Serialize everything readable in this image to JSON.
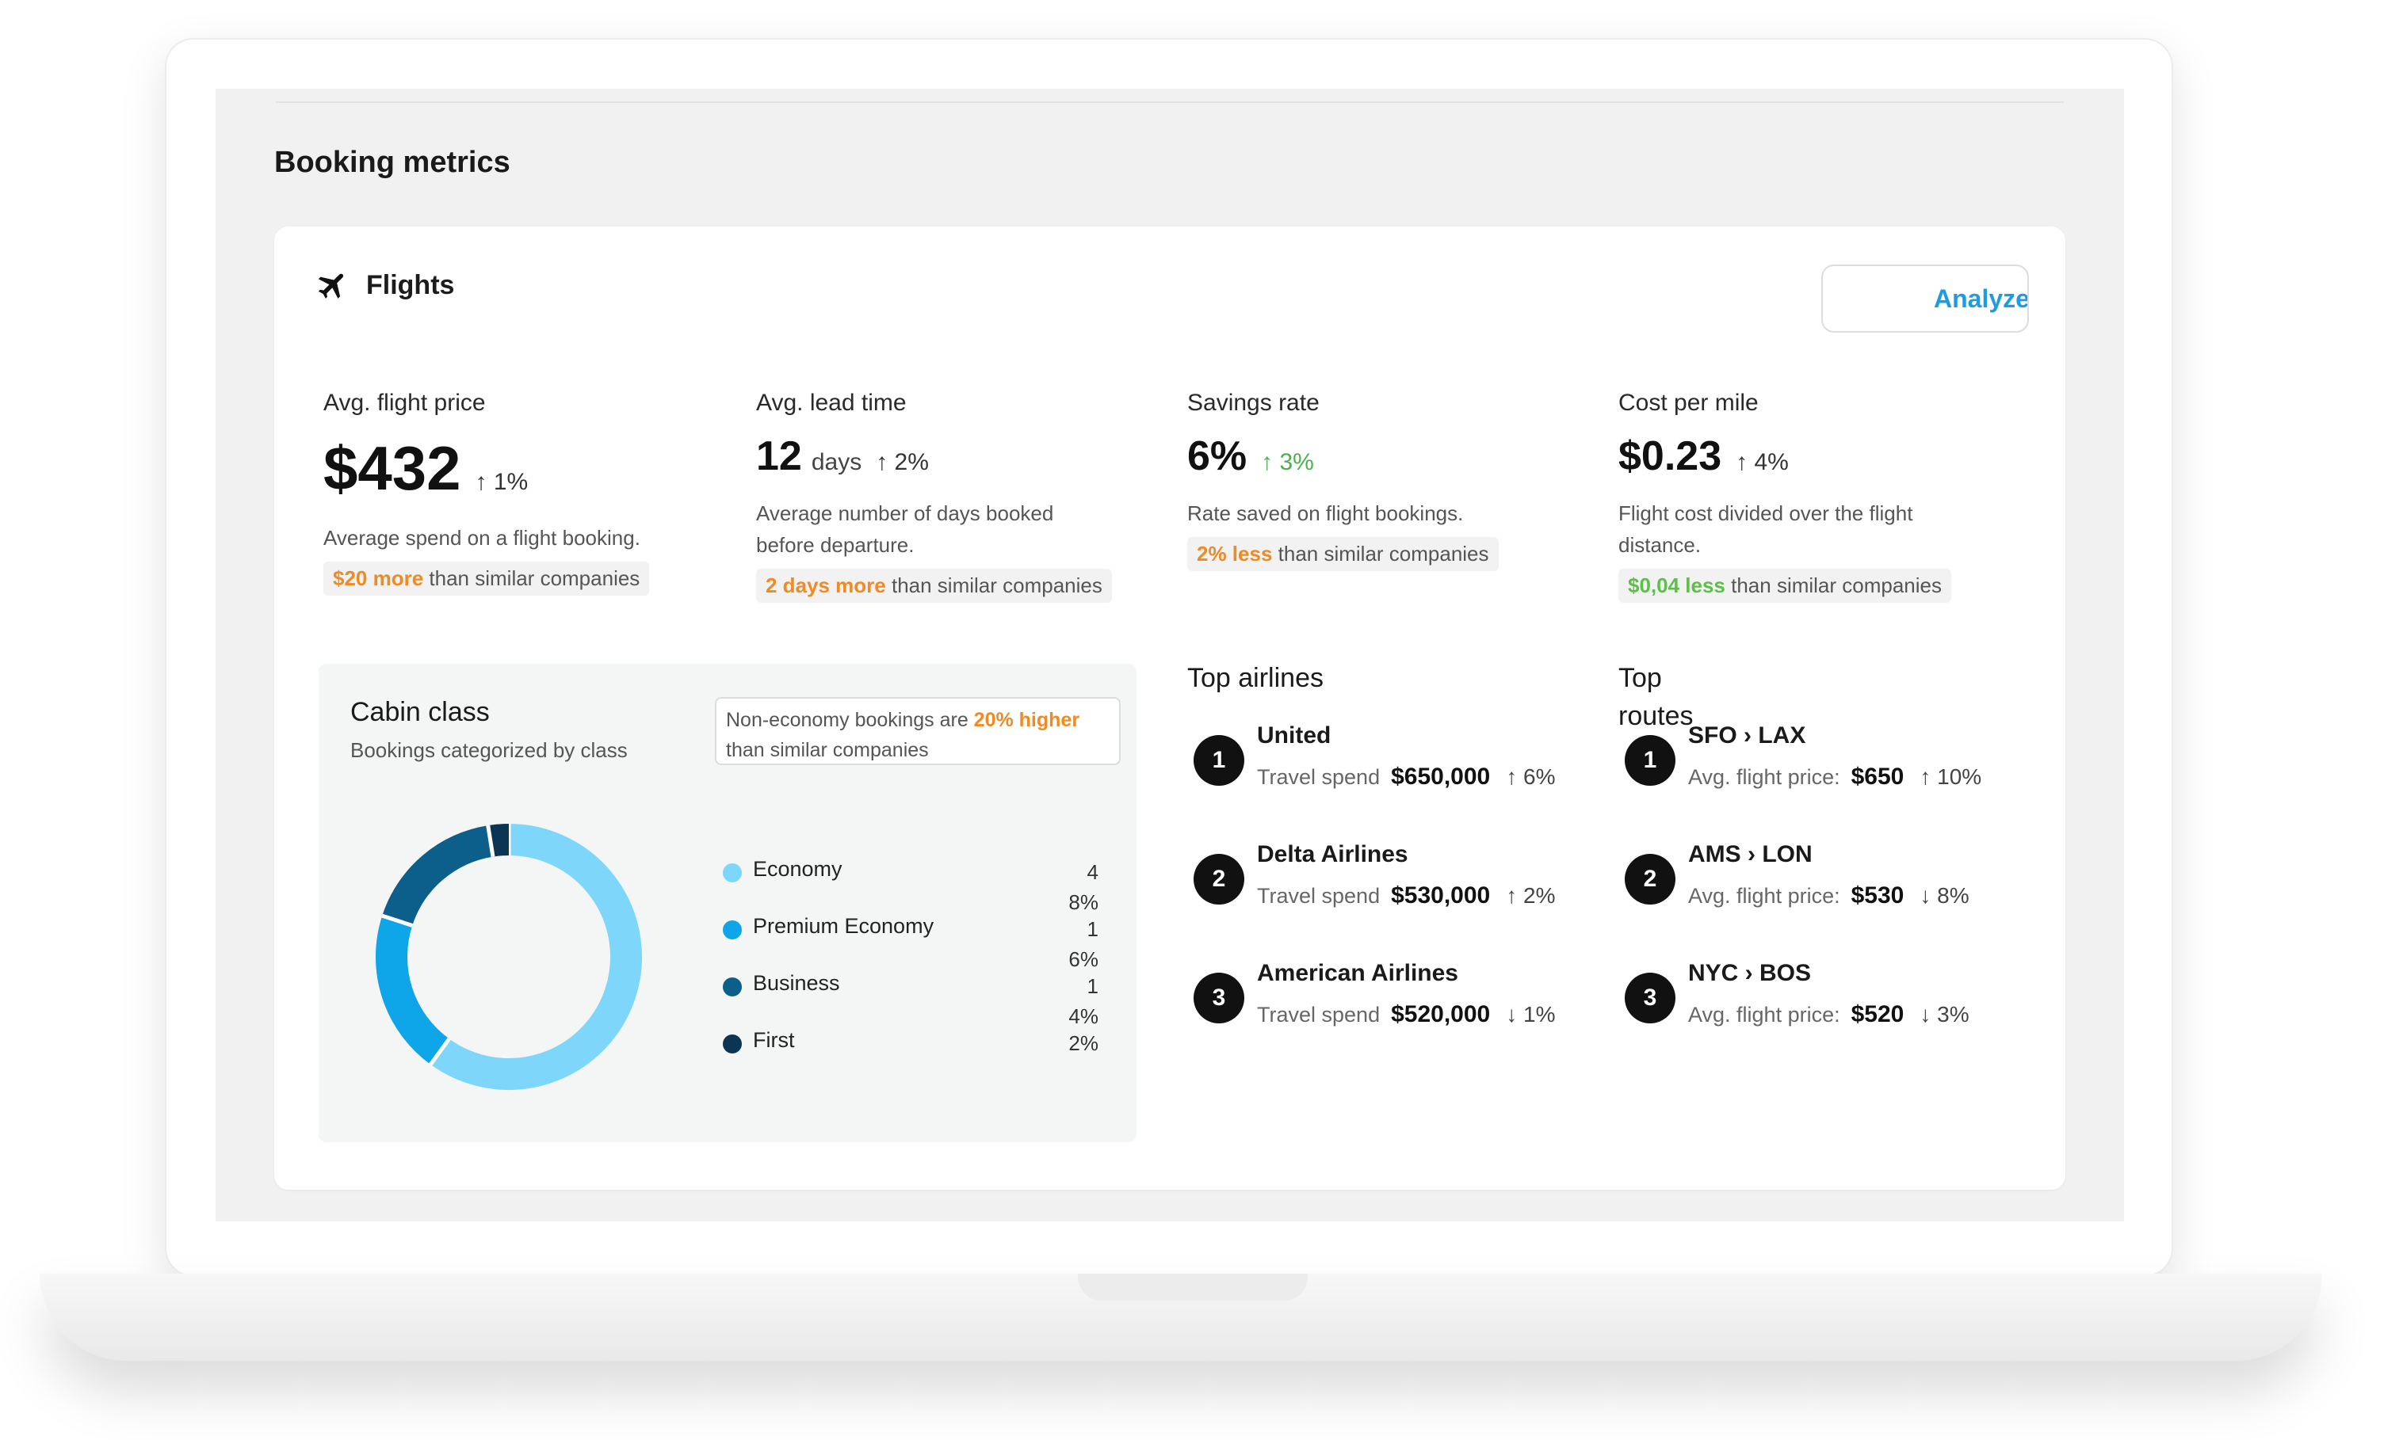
{
  "section_title": "Booking metrics",
  "card": {
    "title": "Flights",
    "analyze_label": "Analyze"
  },
  "metrics": [
    {
      "label": "Avg. flight price",
      "value": "$432",
      "unit": "",
      "change": "↑ 1%",
      "description": "Average spend on a flight booking.",
      "compare_highlight": "$20 more",
      "compare_rest": " than similar companies"
    },
    {
      "label": "Avg. lead time",
      "value": "12",
      "unit": "days",
      "change": "↑ 2%",
      "description": "Average number of days booked before departure.",
      "compare_highlight": "2 days more",
      "compare_rest": " than similar companies"
    },
    {
      "label": "Savings rate",
      "value": "6%",
      "unit": "",
      "change": "↑ 3%",
      "description": "Rate saved on flight bookings.",
      "compare_highlight": "2% less",
      "compare_rest": " than similar companies"
    },
    {
      "label": "Cost per mile",
      "value": "$0.23",
      "unit": "",
      "change": "↑ 4%",
      "description": "Flight cost divided over the flight distance.",
      "compare_highlight": "$0,04 less",
      "compare_rest": " than similar companies"
    }
  ],
  "cabin": {
    "title": "Cabin class",
    "subtitle": "Bookings categorized by class",
    "note_prefix": "Non-economy bookings are ",
    "note_highlight": "20% higher",
    "note_suffix": " than similar companies",
    "colors": {
      "economy": "#7fd6fb",
      "premium_economy": "#0ea5e9",
      "business": "#0b5f8a",
      "first": "#0b3553"
    }
  },
  "chart_data": {
    "type": "pie",
    "categories": [
      "Economy",
      "Premium Economy",
      "Business",
      "First"
    ],
    "values": [
      48,
      16,
      14,
      2
    ],
    "value_labels": [
      "48%",
      "16%",
      "14%",
      "2%"
    ]
  },
  "top_airlines": {
    "title": "Top airlines",
    "detail_label": "Travel spend",
    "items": [
      {
        "rank": "1",
        "name": "United",
        "value": "$650,000",
        "change": "↑ 6%"
      },
      {
        "rank": "2",
        "name": "Delta Airlines",
        "value": "$530,000",
        "change": "↑ 2%"
      },
      {
        "rank": "3",
        "name": "American Airlines",
        "value": "$520,000",
        "change": "↓ 1%"
      }
    ]
  },
  "top_routes": {
    "title": "Top routes",
    "detail_label": "Avg. flight price:",
    "items": [
      {
        "rank": "1",
        "name": "SFO › LAX",
        "value": "$650",
        "change": "↑ 10%"
      },
      {
        "rank": "2",
        "name": "AMS › LON",
        "value": "$530",
        "change": "↓ 8%"
      },
      {
        "rank": "3",
        "name": "NYC › BOS",
        "value": "$520",
        "change": "↓ 3%"
      }
    ]
  }
}
